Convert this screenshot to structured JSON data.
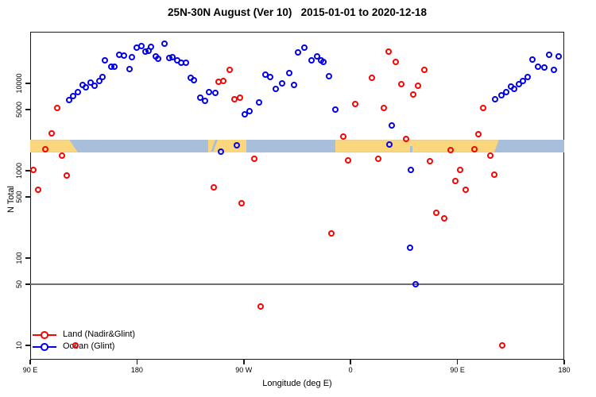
{
  "title": "25N-30N August (Ver 10)   2015-01-01 to 2020-12-18",
  "chart_data": {
    "type": "scatter",
    "title": "25N-30N August (Ver 10)   2015-01-01 to 2020-12-18",
    "x_axis": {
      "label": "Longitude (deg E)",
      "note": "x values are degrees along the axis measured eastward from the left edge (left edge = 90 E, axis wraps through 180, 90 W, 0, 90 E to 180)",
      "range_deg": [
        0,
        450
      ],
      "tick_positions_deg": [
        0,
        90,
        180,
        270,
        360,
        450
      ],
      "tick_labels": [
        "90 E",
        "180",
        "90 W",
        "0",
        "90 E",
        "180"
      ]
    },
    "y_axis": {
      "label": "N Total",
      "scale": "log",
      "ticks": [
        10,
        50,
        100,
        500,
        1000,
        5000,
        10000
      ],
      "range": [
        7,
        37000
      ]
    },
    "reference_line": {
      "n": 50,
      "color": "#6f6f6f"
    },
    "map_strip": {
      "description": "coastline strip showing land (orange) vs ocean (blue) along longitude",
      "n_top": 2250,
      "n_bottom": 1630,
      "land_color": "#FAD67D",
      "ocean_color": "#A8BFDB",
      "land_segments": [
        {
          "from_deg": 0,
          "to_deg_top": 33,
          "to_deg_bottom": 40
        },
        {
          "from_deg": 150,
          "to_deg_top": 182,
          "to_deg_bottom": 182
        },
        {
          "from_deg": 257,
          "to_deg_top": 395,
          "to_deg_bottom": 391
        }
      ],
      "ocean_marks": [
        {
          "from_deg": 151,
          "to_deg": 157,
          "style": "slash"
        },
        {
          "from_deg": 320,
          "to_deg": 322,
          "style": "bottom-notch"
        }
      ]
    },
    "series": [
      {
        "name": "Land (Nadir&Glint)",
        "color": "#FF0000",
        "points": [
          [
            3,
            1020
          ],
          [
            7,
            610
          ],
          [
            13,
            1760
          ],
          [
            18,
            2670
          ],
          [
            23,
            5200
          ],
          [
            27,
            1490
          ],
          [
            31,
            880
          ],
          [
            38,
            10
          ],
          [
            155,
            645
          ],
          [
            159,
            10400
          ],
          [
            163,
            10600
          ],
          [
            168,
            14300
          ],
          [
            172,
            6600
          ],
          [
            177,
            6900
          ],
          [
            178,
            425
          ],
          [
            189,
            1370
          ],
          [
            194,
            28
          ],
          [
            254,
            190
          ],
          [
            264,
            2460
          ],
          [
            268,
            1320
          ],
          [
            274,
            5800
          ],
          [
            288,
            11600
          ],
          [
            293,
            1370
          ],
          [
            298,
            5200
          ],
          [
            302,
            23100
          ],
          [
            308,
            17700
          ],
          [
            313,
            9800
          ],
          [
            317,
            2320
          ],
          [
            323,
            7500
          ],
          [
            327,
            9400
          ],
          [
            332,
            14300
          ],
          [
            337,
            1290
          ],
          [
            342,
            330
          ],
          [
            349,
            285
          ],
          [
            354,
            1720
          ],
          [
            358,
            760
          ],
          [
            362,
            1020
          ],
          [
            367,
            610
          ],
          [
            374,
            1760
          ],
          [
            378,
            2630
          ],
          [
            382,
            5200
          ],
          [
            388,
            1490
          ],
          [
            391,
            900
          ],
          [
            398,
            10
          ]
        ]
      },
      {
        "name": "Ocean (Glint)",
        "color": "#0000EE",
        "points": [
          [
            33,
            6400
          ],
          [
            36,
            7200
          ],
          [
            40,
            7900
          ],
          [
            44,
            9600
          ],
          [
            47,
            9000
          ],
          [
            51,
            10200
          ],
          [
            54,
            9400
          ],
          [
            58,
            10600
          ],
          [
            61,
            11800
          ],
          [
            63,
            18400
          ],
          [
            68,
            15500
          ],
          [
            71,
            15500
          ],
          [
            75,
            21200
          ],
          [
            79,
            20800
          ],
          [
            84,
            14600
          ],
          [
            86,
            20000
          ],
          [
            90,
            25700
          ],
          [
            94,
            26700
          ],
          [
            97,
            23100
          ],
          [
            100,
            23600
          ],
          [
            102,
            26200
          ],
          [
            106,
            20400
          ],
          [
            108,
            19200
          ],
          [
            113,
            28500
          ],
          [
            117,
            19600
          ],
          [
            120,
            20000
          ],
          [
            124,
            18400
          ],
          [
            127,
            17300
          ],
          [
            131,
            17300
          ],
          [
            135,
            11600
          ],
          [
            138,
            10900
          ],
          [
            143,
            6800
          ],
          [
            147,
            6300
          ],
          [
            151,
            7900
          ],
          [
            156,
            7800
          ],
          [
            161,
            1660
          ],
          [
            174,
            1950
          ],
          [
            181,
            4400
          ],
          [
            185,
            4800
          ],
          [
            193,
            6100
          ],
          [
            198,
            12500
          ],
          [
            202,
            11800
          ],
          [
            207,
            8600
          ],
          [
            212,
            10000
          ],
          [
            218,
            13100
          ],
          [
            222,
            9600
          ],
          [
            226,
            22600
          ],
          [
            231,
            25700
          ],
          [
            237,
            18400
          ],
          [
            242,
            20400
          ],
          [
            245,
            18400
          ],
          [
            247,
            17700
          ],
          [
            252,
            12100
          ],
          [
            257,
            5000
          ],
          [
            303,
            2000
          ],
          [
            305,
            3300
          ],
          [
            320,
            130
          ],
          [
            321,
            1020
          ],
          [
            325,
            50
          ],
          [
            392,
            6600
          ],
          [
            397,
            7300
          ],
          [
            401,
            7900
          ],
          [
            405,
            9200
          ],
          [
            408,
            8600
          ],
          [
            412,
            9800
          ],
          [
            415,
            10600
          ],
          [
            419,
            11800
          ],
          [
            423,
            18700
          ],
          [
            428,
            15500
          ],
          [
            433,
            15200
          ],
          [
            437,
            21200
          ],
          [
            441,
            14300
          ],
          [
            445,
            20400
          ]
        ]
      }
    ],
    "legend_position": "bottom-left"
  }
}
